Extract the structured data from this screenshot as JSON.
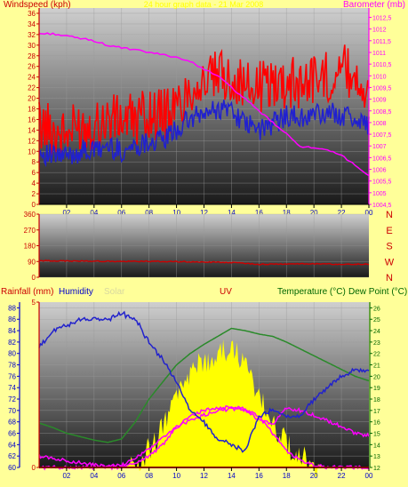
{
  "colors": {
    "background": "#ffff99",
    "wind": "#ff0000",
    "gust": "#2020d0",
    "barometer": "#ff00ff",
    "direction": "#cc0000",
    "rainfall": "#ff0000",
    "humidity": "#2222cc",
    "solar": "#ffff00",
    "uv": "#ff00ff",
    "temperature": "#2a8a2a",
    "dewpoint": "#ff00ff",
    "title": "#ffff00",
    "label_red": "#cc0000",
    "label_blue": "#0000cc",
    "label_magenta": "#ff00ff",
    "label_green": "#006600",
    "label_solar": "#d8d8a0"
  },
  "chart_data": [
    {
      "type": "line",
      "title": "24 hour graph data - 21 Mar 2008",
      "x_ticks": [
        "02",
        "04",
        "06",
        "08",
        "10",
        "12",
        "14",
        "16",
        "18",
        "20",
        "22",
        "00"
      ],
      "left_axis": {
        "label": "Windspeed (kph)",
        "ticks": [
          "0",
          "2",
          "4",
          "6",
          "8",
          "10",
          "12",
          "14",
          "16",
          "18",
          "20",
          "22",
          "24",
          "26",
          "28",
          "30",
          "32",
          "34",
          "36"
        ],
        "ylim": [
          0,
          37
        ]
      },
      "right_axis": {
        "label": "Barometer (mb)",
        "ticks": [
          "1004,5",
          "1005",
          "1005,5",
          "1006",
          "1006,5",
          "1007",
          "1007,5",
          "1008",
          "1008,5",
          "1009",
          "1009,5",
          "1010",
          "1010,5",
          "1011",
          "1011,5",
          "1012",
          "1012,5"
        ],
        "ylim": [
          1004.5,
          1012.9
        ]
      },
      "hours": [
        0,
        1,
        2,
        3,
        4,
        5,
        6,
        7,
        8,
        9,
        10,
        11,
        12,
        13,
        14,
        15,
        16,
        17,
        18,
        19,
        20,
        21,
        22,
        23,
        24
      ],
      "series": [
        {
          "name": "Windspeed",
          "color_key": "wind",
          "axis": "left",
          "values": [
            15,
            14,
            13,
            15,
            15,
            16,
            16,
            16,
            17,
            17,
            18,
            22,
            23,
            24,
            24,
            22,
            22,
            23,
            23,
            23,
            24,
            24,
            26,
            24,
            22
          ]
        },
        {
          "name": "Gust",
          "color_key": "gust",
          "axis": "left",
          "values": [
            10,
            9,
            9,
            10,
            10,
            11,
            10,
            11,
            12,
            12,
            14,
            16,
            17,
            18,
            18,
            15,
            14,
            15,
            17,
            16,
            17,
            17,
            17,
            16,
            15
          ]
        },
        {
          "name": "Barometer",
          "color_key": "barometer",
          "axis": "right",
          "values": [
            1011.8,
            1011.8,
            1011.7,
            1011.6,
            1011.5,
            1011.3,
            1011.2,
            1011.1,
            1011.0,
            1010.9,
            1010.8,
            1010.6,
            1010.3,
            1010.0,
            1009.5,
            1009.0,
            1008.5,
            1008.0,
            1007.5,
            1007.0,
            1006.9,
            1006.8,
            1006.6,
            1006.2,
            1005.7
          ]
        }
      ]
    },
    {
      "type": "line",
      "x_ticks": [
        "02",
        "04",
        "06",
        "08",
        "10",
        "12",
        "14",
        "16",
        "18",
        "20",
        "22",
        "00"
      ],
      "left_axis": {
        "ticks": [
          "0",
          "90",
          "180",
          "270",
          "360"
        ],
        "ylim": [
          0,
          360
        ]
      },
      "right_axis": {
        "ticks": [
          "N",
          "W",
          "S",
          "E",
          "N"
        ]
      },
      "hours": [
        0,
        2,
        4,
        6,
        8,
        10,
        12,
        14,
        15,
        16,
        18,
        20,
        22,
        24
      ],
      "series": [
        {
          "name": "Wind direction",
          "color_key": "direction",
          "values": [
            95,
            93,
            92,
            90,
            91,
            89,
            87,
            84,
            80,
            74,
            76,
            77,
            74,
            75
          ]
        }
      ]
    },
    {
      "type": "area",
      "x_ticks": [
        "02",
        "04",
        "06",
        "08",
        "10",
        "12",
        "14",
        "16",
        "18",
        "20",
        "22",
        "00"
      ],
      "legend": [
        "Rainfall (mm)",
        "Humidity",
        "Solar",
        "UV",
        "Temperature (°C)",
        "Dew Point (°C)"
      ],
      "axes": {
        "rainfall": {
          "ticks": [
            "0",
            "5"
          ],
          "ylim": [
            0,
            5
          ]
        },
        "humidity": {
          "ticks": [
            "60",
            "62",
            "64",
            "66",
            "68",
            "70",
            "72",
            "74",
            "76",
            "78",
            "80",
            "82",
            "84",
            "86",
            "88"
          ],
          "ylim": [
            60,
            89
          ]
        },
        "temperature": {
          "ticks": [
            "12",
            "13",
            "14",
            "15",
            "16",
            "17",
            "18",
            "19",
            "20",
            "21",
            "22",
            "23",
            "24",
            "25",
            "26"
          ],
          "ylim": [
            12,
            26.5
          ]
        }
      },
      "hours": [
        0,
        1,
        2,
        3,
        4,
        5,
        6,
        7,
        8,
        9,
        10,
        11,
        12,
        13,
        14,
        15,
        16,
        17,
        18,
        19,
        20,
        21,
        22,
        23,
        24
      ],
      "series": [
        {
          "name": "Humidity",
          "color_key": "humidity",
          "axis": "humidity",
          "values": [
            81,
            84,
            85,
            86,
            86,
            86,
            87,
            86,
            82,
            79,
            75,
            70,
            68,
            65,
            64,
            63,
            69,
            70,
            69,
            69,
            72,
            74,
            76,
            77,
            77
          ]
        },
        {
          "name": "Temperature",
          "color_key": "temperature",
          "axis": "temperature",
          "values": [
            15.9,
            15.5,
            15.0,
            14.7,
            14.4,
            14.2,
            14.5,
            16.0,
            18.0,
            19.5,
            21.0,
            22.0,
            22.8,
            23.5,
            24.2,
            24.0,
            23.7,
            23.5,
            23.0,
            22.4,
            21.8,
            21.2,
            20.6,
            20.0,
            19.6
          ]
        },
        {
          "name": "Dew Point",
          "color_key": "dewpoint",
          "axis": "temperature",
          "values": [
            13.0,
            12.8,
            12.6,
            12.4,
            12.2,
            12.1,
            12.2,
            12.8,
            13.6,
            14.6,
            15.6,
            16.1,
            16.6,
            17.0,
            17.1,
            17.0,
            16.2,
            15.8,
            17.2,
            17.0,
            16.6,
            16.1,
            15.6,
            15.0,
            14.8
          ]
        },
        {
          "name": "Solar",
          "color_key": "solar",
          "axis": "temperature",
          "values": [
            12,
            12,
            12,
            12,
            12,
            12,
            12,
            12.5,
            13.5,
            15.5,
            18,
            20,
            21.5,
            21.8,
            22.5,
            21.0,
            18.5,
            16,
            14,
            13,
            12.4,
            12,
            12,
            12,
            12
          ]
        },
        {
          "name": "UV",
          "color_key": "uv",
          "axis": "temperature",
          "values": [
            12,
            12,
            12,
            12,
            12,
            12,
            12,
            12.4,
            13.0,
            14.0,
            15.5,
            16.5,
            17.0,
            17.2,
            17.3,
            17.2,
            16.5,
            15.0,
            13.5,
            12.6,
            12.2,
            12,
            12,
            12,
            12
          ]
        },
        {
          "name": "Rainfall",
          "color_key": "rainfall",
          "axis": "rainfall",
          "values": [
            0,
            0,
            0,
            0,
            0,
            0,
            0,
            0,
            0,
            0,
            0,
            0,
            0,
            0,
            0,
            0,
            0,
            0,
            0,
            0,
            0,
            0,
            0,
            0,
            0
          ]
        }
      ]
    }
  ]
}
